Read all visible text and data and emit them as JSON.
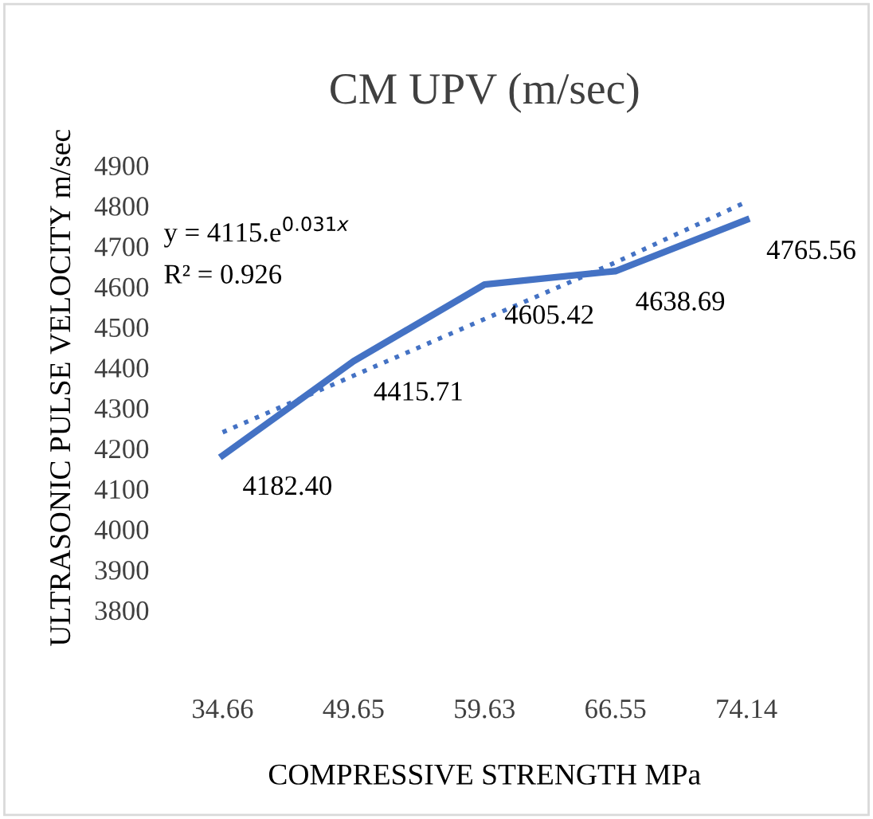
{
  "chart_data": {
    "type": "line",
    "title": "CM UPV (m/sec)",
    "xlabel": "COMPRESSIVE STRENGTH MPa",
    "ylabel": "ULTRASONIC PULSE VELOCITY m/sec",
    "categories": [
      "34.66",
      "49.65",
      "59.63",
      "66.55",
      "74.14"
    ],
    "series": [
      {
        "color": "#4472c4",
        "values": [
          4182.4,
          4415.71,
          4605.42,
          4638.69,
          4765.56
        ],
        "value_labels": [
          "4182.40",
          "4415.71",
          "4605.42",
          "4638.69",
          "4765.56"
        ],
        "line_style": "solid"
      },
      {
        "type": "line",
        "color": "#4472c4",
        "values": [
          4240,
          4380,
          4520,
          4660,
          4810
        ],
        "line_style": "dotted"
      }
    ],
    "annotations": [
      "y = 4115.e$^{0.031x}$",
      "R² = 0.926"
    ],
    "ylim": [
      3800,
      4900
    ],
    "yticks": [
      3800,
      3900,
      4000,
      4100,
      4200,
      4300,
      4400,
      4500,
      4600,
      4700,
      4800,
      4900
    ],
    "grid": false,
    "marker": "none"
  }
}
